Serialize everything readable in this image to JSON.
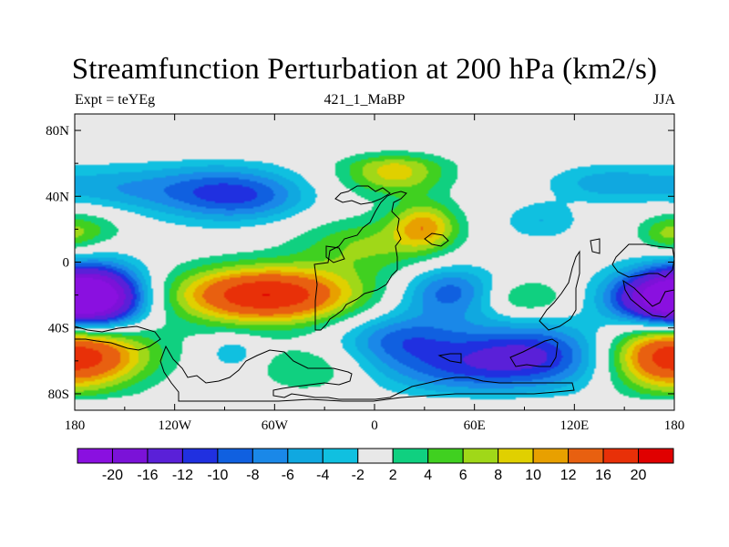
{
  "chart_data": {
    "type": "heatmap",
    "title": "Streamfunction Perturbation at 200 hPa (km2/s)",
    "subtitle_left": "Expt = teYEg",
    "subtitle_center": "421_1_MaBP",
    "subtitle_right": "JJA",
    "x_ticks": [
      {
        "value": -180,
        "label": "180"
      },
      {
        "value": -120,
        "label": "120W"
      },
      {
        "value": -60,
        "label": "60W"
      },
      {
        "value": 0,
        "label": "0"
      },
      {
        "value": 60,
        "label": "60E"
      },
      {
        "value": 120,
        "label": "120E"
      },
      {
        "value": 180,
        "label": "180"
      }
    ],
    "y_ticks": [
      {
        "value": 80,
        "label": "80N"
      },
      {
        "value": 40,
        "label": "40N"
      },
      {
        "value": 0,
        "label": "0"
      },
      {
        "value": -40,
        "label": "40S"
      },
      {
        "value": -80,
        "label": "80S"
      }
    ],
    "xlim": [
      -180,
      180
    ],
    "ylim": [
      -90,
      90
    ],
    "colorbar": {
      "levels": [
        "-20",
        "-16",
        "-12",
        "-10",
        "-8",
        "-6",
        "-4",
        "-2",
        "2",
        "4",
        "6",
        "8",
        "10",
        "12",
        "16",
        "20"
      ],
      "colors": [
        "#8a10e0",
        "#7b12d8",
        "#5a20d8",
        "#2030e0",
        "#1060e0",
        "#1a88e8",
        "#10a8e0",
        "#10c0e0",
        "#e8e8e8",
        "#10d080",
        "#40d020",
        "#a0d818",
        "#e0d000",
        "#e8a000",
        "#e86010",
        "#e83008",
        "#e00000"
      ]
    },
    "field_centers": [
      {
        "lon": -95,
        "lat": 42,
        "value": -9,
        "slon": 28,
        "slat": 12
      },
      {
        "lon": -65,
        "lat": 40,
        "value": -4,
        "slon": 22,
        "slat": 10
      },
      {
        "lon": -155,
        "lat": 45,
        "value": -5,
        "slon": 30,
        "slat": 10
      },
      {
        "lon": -175,
        "lat": 20,
        "value": 5,
        "slon": 18,
        "slat": 9
      },
      {
        "lon": 12,
        "lat": 55,
        "value": 9,
        "slon": 22,
        "slat": 10
      },
      {
        "lon": 30,
        "lat": 22,
        "value": 10,
        "slon": 14,
        "slat": 10
      },
      {
        "lon": -5,
        "lat": 10,
        "value": 6,
        "slon": 30,
        "slat": 12
      },
      {
        "lon": 140,
        "lat": 48,
        "value": -5,
        "slon": 25,
        "slat": 8
      },
      {
        "lon": 100,
        "lat": 25,
        "value": -4,
        "slon": 16,
        "slat": 8
      },
      {
        "lon": 175,
        "lat": 15,
        "value": 3,
        "slon": 10,
        "slat": 7
      },
      {
        "lon": -165,
        "lat": -22,
        "value": -20,
        "slon": 20,
        "slat": 14
      },
      {
        "lon": -65,
        "lat": -20,
        "value": 20,
        "slon": 38,
        "slat": 12
      },
      {
        "lon": 45,
        "lat": -18,
        "value": -9,
        "slon": 20,
        "slat": 11
      },
      {
        "lon": 90,
        "lat": -22,
        "value": 5,
        "slon": 18,
        "slat": 8
      },
      {
        "lon": 170,
        "lat": -22,
        "value": -18,
        "slon": 22,
        "slat": 12
      },
      {
        "lon": -170,
        "lat": -55,
        "value": 12,
        "slon": 28,
        "slat": 14
      },
      {
        "lon": 170,
        "lat": -58,
        "value": 10,
        "slon": 25,
        "slat": 15
      },
      {
        "lon": 90,
        "lat": -57,
        "value": -13,
        "slon": 38,
        "slat": 14
      },
      {
        "lon": 15,
        "lat": -47,
        "value": -8,
        "slon": 25,
        "slat": 12
      },
      {
        "lon": -85,
        "lat": -55,
        "value": -4,
        "slon": 10,
        "slat": 7
      },
      {
        "lon": -40,
        "lat": -65,
        "value": 4,
        "slon": 22,
        "slat": 10
      },
      {
        "lon": 40,
        "lat": -68,
        "value": -4,
        "slon": 30,
        "slat": 10
      }
    ]
  }
}
